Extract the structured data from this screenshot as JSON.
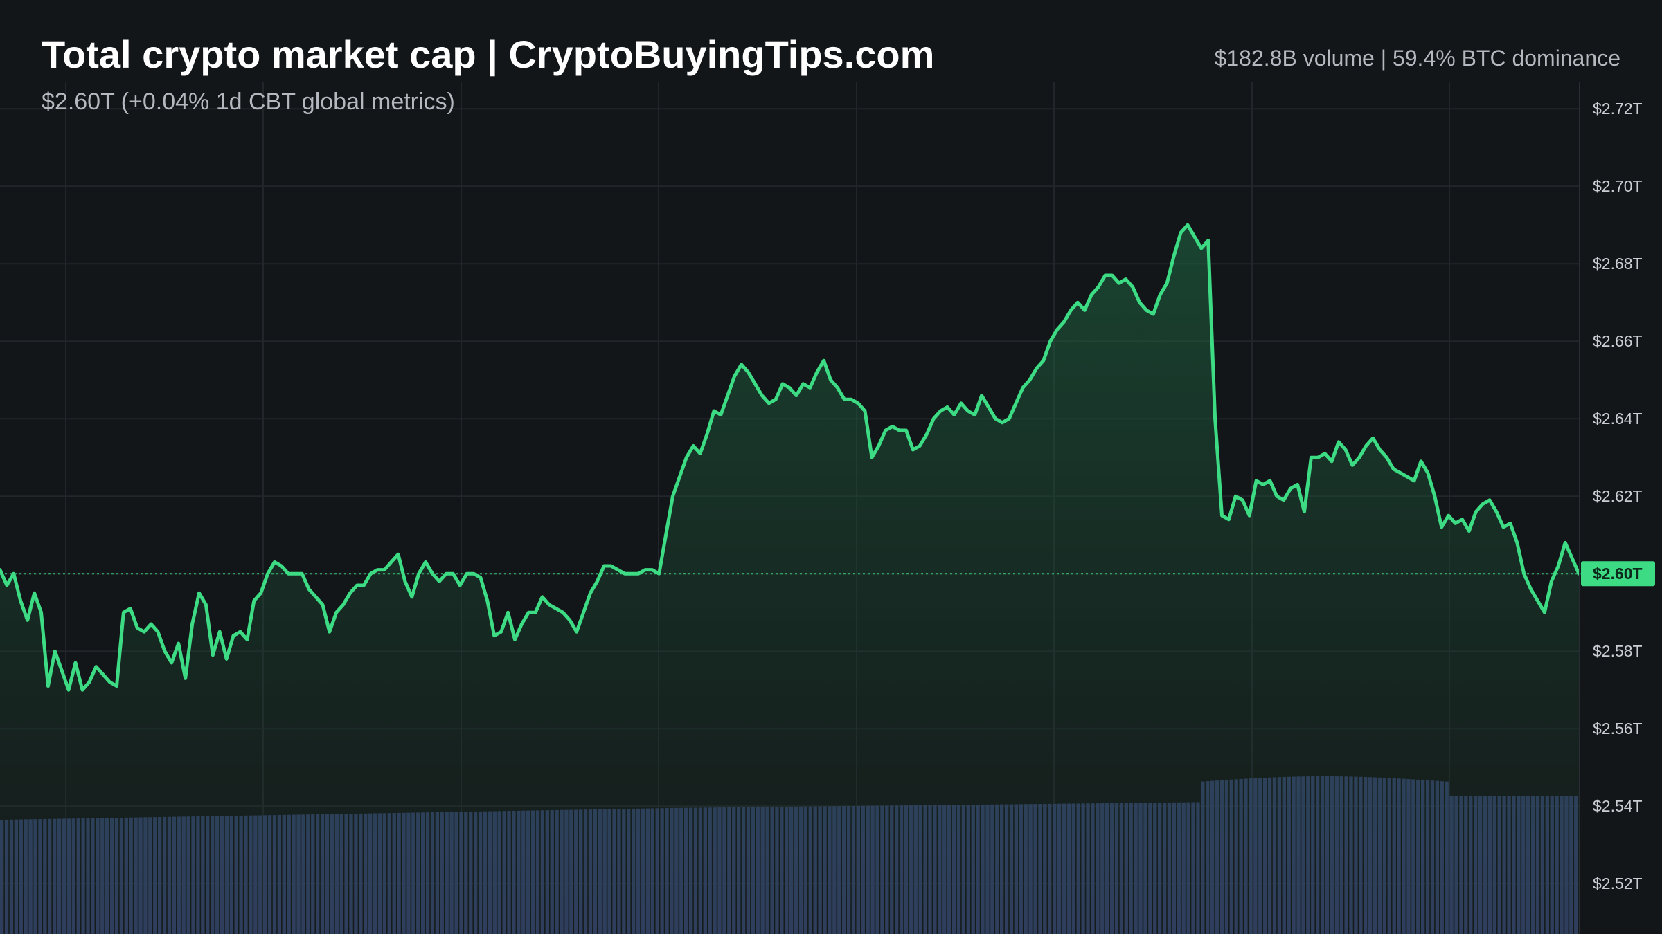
{
  "header": {
    "title": "Total crypto market cap | CryptoBuyingTips.com",
    "subtitle": "$2.60T (+0.04% 1d CBT global metrics)",
    "stats": "$182.8B volume | 59.4% BTC dominance"
  },
  "colors": {
    "background": "#131619",
    "line": "#3ddc84",
    "volume": "#3a4a7a",
    "grid": "#22262b",
    "current_badge": "#3ddc84"
  },
  "chart_data": {
    "type": "area",
    "title": "Total crypto market cap | CryptoBuyingTips.com",
    "xlabel": "",
    "ylabel": "",
    "ylim": [
      2.507,
      2.727
    ],
    "y_ticks": [
      2.72,
      2.7,
      2.68,
      2.66,
      2.64,
      2.62,
      2.6,
      2.58,
      2.56,
      2.54,
      2.52
    ],
    "y_tick_labels": [
      "$2.72T",
      "$2.70T",
      "$2.68T",
      "$2.66T",
      "$2.64T",
      "$2.62T",
      "$2.60T",
      "$2.58T",
      "$2.56T",
      "$2.54T",
      "$2.52T"
    ],
    "current_value": 2.6,
    "current_label": "$2.60T",
    "grid": true,
    "series": [
      {
        "values": [
          2.601,
          2.597,
          2.6,
          2.593,
          2.588,
          2.595,
          2.59,
          2.571,
          2.58,
          2.575,
          2.57,
          2.577,
          2.57,
          2.572,
          2.576,
          2.574,
          2.572,
          2.571,
          2.59,
          2.591,
          2.586,
          2.585,
          2.587,
          2.585,
          2.58,
          2.577,
          2.582,
          2.573,
          2.587,
          2.595,
          2.592,
          2.579,
          2.585,
          2.578,
          2.584,
          2.585,
          2.583,
          2.593,
          2.595,
          2.6,
          2.603,
          2.602,
          2.6,
          2.6,
          2.6,
          2.596,
          2.594,
          2.592,
          2.585,
          2.59,
          2.592,
          2.595,
          2.597,
          2.597,
          2.6,
          2.601,
          2.601,
          2.603,
          2.605,
          2.598,
          2.594,
          2.6,
          2.603,
          2.6,
          2.598,
          2.6,
          2.6,
          2.597,
          2.6,
          2.6,
          2.599,
          2.593,
          2.584,
          2.585,
          2.59,
          2.583,
          2.587,
          2.59,
          2.59,
          2.594,
          2.592,
          2.591,
          2.59,
          2.588,
          2.585,
          2.59,
          2.595,
          2.598,
          2.602,
          2.602,
          2.601,
          2.6,
          2.6,
          2.6,
          2.601,
          2.601,
          2.6,
          2.61,
          2.62,
          2.625,
          2.63,
          2.633,
          2.631,
          2.636,
          2.642,
          2.641,
          2.646,
          2.651,
          2.654,
          2.652,
          2.649,
          2.646,
          2.644,
          2.645,
          2.649,
          2.648,
          2.646,
          2.649,
          2.648,
          2.652,
          2.655,
          2.65,
          2.648,
          2.645,
          2.645,
          2.644,
          2.642,
          2.63,
          2.633,
          2.637,
          2.638,
          2.637,
          2.637,
          2.632,
          2.633,
          2.636,
          2.64,
          2.642,
          2.643,
          2.641,
          2.644,
          2.642,
          2.641,
          2.646,
          2.643,
          2.64,
          2.639,
          2.64,
          2.644,
          2.648,
          2.65,
          2.653,
          2.655,
          2.66,
          2.663,
          2.665,
          2.668,
          2.67,
          2.668,
          2.672,
          2.674,
          2.677,
          2.677,
          2.675,
          2.676,
          2.674,
          2.67,
          2.668,
          2.667,
          2.672,
          2.675,
          2.682,
          2.688,
          2.69,
          2.687,
          2.684,
          2.686,
          2.64,
          2.615,
          2.614,
          2.62,
          2.619,
          2.615,
          2.624,
          2.623,
          2.624,
          2.62,
          2.619,
          2.622,
          2.623,
          2.616,
          2.63,
          2.63,
          2.631,
          2.629,
          2.634,
          2.632,
          2.628,
          2.63,
          2.633,
          2.635,
          2.632,
          2.63,
          2.627,
          2.626,
          2.625,
          2.624,
          2.629,
          2.626,
          2.62,
          2.612,
          2.615,
          2.613,
          2.614,
          2.611,
          2.616,
          2.618,
          2.619,
          2.616,
          2.612,
          2.613,
          2.608,
          2.6,
          2.596,
          2.593,
          2.59,
          2.598,
          2.602,
          2.608,
          2.604,
          2.6
        ]
      }
    ]
  }
}
